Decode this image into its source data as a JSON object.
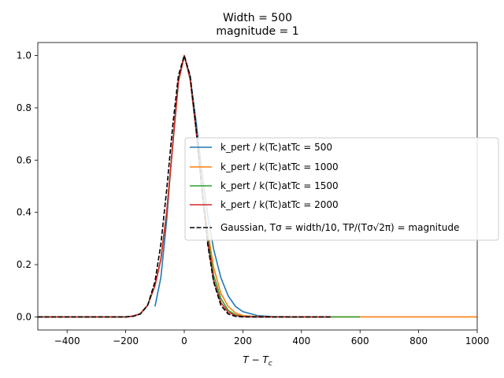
{
  "chart_data": {
    "type": "line",
    "title_lines": [
      "Width = 500",
      "magnitude = 1"
    ],
    "xlabel": "T − Tc",
    "ylabel": "",
    "xlim": [
      -500,
      1000
    ],
    "ylim": [
      -0.05,
      1.05
    ],
    "xticks": [
      -400,
      -200,
      0,
      200,
      400,
      600,
      800,
      1000
    ],
    "yticks": [
      0.0,
      0.2,
      0.4,
      0.6,
      0.8,
      1.0
    ],
    "xtick_labels": [
      "−400",
      "−200",
      "0",
      "200",
      "400",
      "600",
      "800",
      "1000"
    ],
    "ytick_labels": [
      "0.0",
      "0.2",
      "0.4",
      "0.6",
      "0.8",
      "1.0"
    ],
    "grid": false,
    "legend_placement": "center-right",
    "legend_entries": [
      "k_pert / k(Tc)atTc = 500",
      "k_pert / k(Tc)atTc = 1000",
      "k_pert / k(Tc)atTc = 1500",
      "k_pert / k(Tc)atTc = 2000",
      "Gaussian, Tσ = width/10, TP/(Tσ√2π) = magnitude"
    ],
    "series": [
      {
        "name": "k_pert / k(Tc)atTc = 500",
        "color": "#1f77b4",
        "style": "solid",
        "x": [
          -100,
          -80,
          -60,
          -40,
          -20,
          0,
          20,
          40,
          60,
          80,
          100,
          125,
          150,
          175,
          200,
          250,
          300,
          400,
          500
        ],
        "y": [
          0.04,
          0.15,
          0.37,
          0.66,
          0.91,
          1.0,
          0.92,
          0.75,
          0.56,
          0.39,
          0.26,
          0.15,
          0.08,
          0.04,
          0.02,
          0.005,
          0.001,
          0.0,
          0.0
        ]
      },
      {
        "name": "k_pert / k(Tc)atTc = 1000",
        "color": "#ff7f0e",
        "style": "solid",
        "x": [
          -500,
          -300,
          -200,
          -175,
          -150,
          -125,
          -100,
          -80,
          -60,
          -40,
          -20,
          0,
          20,
          40,
          60,
          80,
          100,
          125,
          150,
          175,
          200,
          250,
          300,
          400,
          600,
          800,
          1000
        ],
        "y": [
          0.0,
          0.0,
          0.0,
          0.003,
          0.012,
          0.045,
          0.12,
          0.22,
          0.4,
          0.65,
          0.9,
          1.0,
          0.91,
          0.72,
          0.51,
          0.33,
          0.19,
          0.09,
          0.04,
          0.015,
          0.005,
          0.001,
          0.0,
          0.0,
          0.0,
          0.0,
          0.0
        ]
      },
      {
        "name": "k_pert / k(Tc)atTc = 1500",
        "color": "#2ca02c",
        "style": "solid",
        "x": [
          -500,
          -300,
          -200,
          -175,
          -150,
          -125,
          -100,
          -80,
          -60,
          -40,
          -20,
          0,
          20,
          40,
          60,
          80,
          100,
          125,
          150,
          175,
          200,
          250,
          300,
          400,
          500,
          600
        ],
        "y": [
          0.0,
          0.0,
          0.0,
          0.003,
          0.012,
          0.045,
          0.12,
          0.22,
          0.4,
          0.65,
          0.9,
          1.0,
          0.91,
          0.72,
          0.5,
          0.31,
          0.16,
          0.07,
          0.025,
          0.008,
          0.002,
          0.0,
          0.0,
          0.0,
          0.0,
          0.0
        ]
      },
      {
        "name": "k_pert / k(Tc)atTc = 2000",
        "color": "#d62728",
        "style": "solid",
        "x": [
          -500,
          -300,
          -200,
          -175,
          -150,
          -125,
          -100,
          -80,
          -60,
          -40,
          -20,
          0,
          20,
          40,
          60,
          80,
          100,
          125,
          150,
          175,
          200,
          250,
          300,
          400,
          500
        ],
        "y": [
          0.0,
          0.0,
          0.0,
          0.003,
          0.012,
          0.045,
          0.12,
          0.22,
          0.4,
          0.65,
          0.9,
          1.0,
          0.91,
          0.72,
          0.49,
          0.29,
          0.14,
          0.055,
          0.018,
          0.005,
          0.001,
          0.0,
          0.0,
          0.0,
          0.0
        ]
      },
      {
        "name": "Gaussian, Tσ = width/10, TP/(Tσ√2π) = magnitude",
        "color": "#000000",
        "style": "dashed",
        "x": [
          -500,
          -300,
          -200,
          -175,
          -150,
          -125,
          -100,
          -80,
          -60,
          -40,
          -20,
          0,
          20,
          40,
          60,
          80,
          100,
          125,
          150,
          175,
          200,
          250,
          300,
          400,
          500
        ],
        "y": [
          0.0,
          0.0,
          0.0,
          0.002,
          0.011,
          0.044,
          0.135,
          0.278,
          0.487,
          0.726,
          0.923,
          1.0,
          0.923,
          0.726,
          0.487,
          0.278,
          0.135,
          0.044,
          0.011,
          0.002,
          0.0,
          0.0,
          0.0,
          0.0,
          0.0
        ]
      }
    ]
  }
}
